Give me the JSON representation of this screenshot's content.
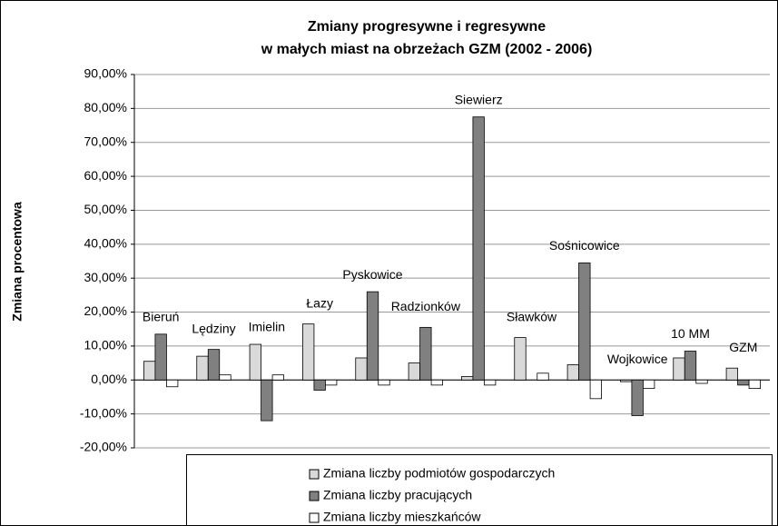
{
  "chart_data": {
    "type": "bar",
    "title": [
      "Zmiany progresywne i regresywne",
      "w małych miast na obrzeżach GZM (2002 - 2006)"
    ],
    "y_label": "Zmiana procentowa",
    "categories": [
      "Bieruń",
      "Lędziny",
      "Imielin",
      "Łazy",
      "Pyskowice",
      "Radzionków",
      "Siewierz",
      "Sławków",
      "Sośnicowice",
      "Wojkowice",
      "10 MM",
      "GZM"
    ],
    "series": [
      {
        "name": "Zmiana liczby podmiotów gospodarczych",
        "color": "#d9d9d9",
        "values": [
          5.5,
          7,
          10.5,
          16.5,
          6.5,
          5,
          1,
          12.5,
          4.5,
          -0.5,
          6.5,
          3.5
        ]
      },
      {
        "name": "Zmiana liczby pracujących",
        "color": "#808080",
        "values": [
          13.5,
          9,
          -12,
          -3,
          26,
          15.5,
          77.5,
          0,
          34.5,
          -10.5,
          8.5,
          -1.5
        ]
      },
      {
        "name": "Zmiana liczby mieszkańców",
        "color": "#ffffff",
        "values": [
          -2,
          1.5,
          1.5,
          -1.5,
          -1.5,
          -1.5,
          -1.5,
          2,
          -5.5,
          -2.5,
          -1,
          -2.5
        ]
      }
    ],
    "ylim": [
      -20,
      90
    ],
    "yticks": [
      {
        "value": -20,
        "label": "-20,00%"
      },
      {
        "value": -10,
        "label": "-10,00%"
      },
      {
        "value": 0,
        "label": "0,00%"
      },
      {
        "value": 10,
        "label": "10,00%"
      },
      {
        "value": 20,
        "label": "20,00%"
      },
      {
        "value": 30,
        "label": "30,00%"
      },
      {
        "value": 40,
        "label": "40,00%"
      },
      {
        "value": 50,
        "label": "50,00%"
      },
      {
        "value": 60,
        "label": "60,00%"
      },
      {
        "value": 70,
        "label": "70,00%"
      },
      {
        "value": 80,
        "label": "80,00%"
      },
      {
        "value": 90,
        "label": "90,00%"
      }
    ],
    "grid": true,
    "legend": "bottom"
  }
}
